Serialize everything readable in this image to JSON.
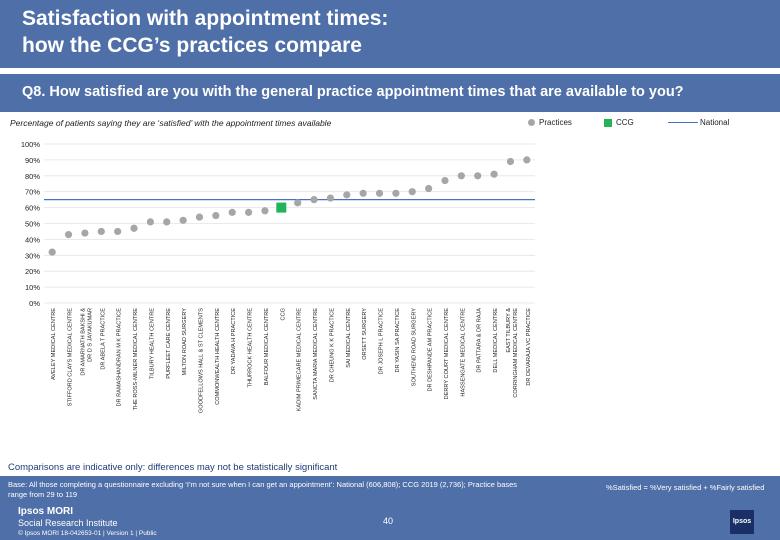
{
  "header": {
    "title_line1": "Satisfaction with appointment times:",
    "title_line2": "how the CCG’s practices compare"
  },
  "question": "Q8. How satisfied are you with the general practice appointment times that are available to you?",
  "subtitle": "Percentage of patients saying they are ‘satisfied’ with the appointment times available",
  "legend": {
    "practices": "Practices",
    "ccg": "CCG",
    "national": "National"
  },
  "colors": {
    "practice": "#a6a6a6",
    "ccg": "#22b45a",
    "national": "#4472c4",
    "brand": "#4f6fa8"
  },
  "chart_data": {
    "type": "scatter",
    "title": "Percentage of patients saying they are ‘satisfied’ with the appointment times available",
    "ylim": [
      0,
      100
    ],
    "yticks": [
      0,
      10,
      20,
      30,
      40,
      50,
      60,
      70,
      80,
      90,
      100
    ],
    "ytick_labels": [
      "0%",
      "10%",
      "20%",
      "30%",
      "40%",
      "50%",
      "60%",
      "70%",
      "80%",
      "90%",
      "100%"
    ],
    "national_value": 65,
    "categories": [
      "AVELEY MEDICAL CENTRE",
      "STIFFORD CLAYS MEDICAL CENTRE",
      "DR AMARNATH BAKSHI & DR D S JAYAKUMAR",
      "DR ABELA T PRACTICE",
      "DR RAMASHANDRAN M K PRACTICE",
      "THE ROSS-MILNER MEDICAL CENTRE",
      "TILBURY HEALTH CENTRE",
      "PURFLEET CARE CENTRE",
      "MILTON ROAD SURGERY",
      "GOODFELLOWS HALL & ST CLEMENTS",
      "COMMONWEALTH HEALTH CENTRE",
      "DR YADAVA H PRACTICE",
      "THURROCK HEALTH CENTRE",
      "BALFOUR MEDICAL CENTRE",
      "CCG",
      "KADIM PRIMECARE MEDICAL CENTRE",
      "SANCTA MARIA MEDICAL CENTRE",
      "DR CHEUNG K K PRACTICE",
      "SAI MEDICAL CENTRE",
      "ORSETT SURGERY",
      "DR JOSEPH L PRACTICE",
      "DR YASIN SA PRACTICE",
      "SOUTHEND ROAD SURGERY",
      "DR DESHPANDE AM PRACTICE",
      "DERRY COURT MEDICAL CENTRE",
      "HASSENGATE MEDICAL CENTRE",
      "DR PATTARA & DR RAJA",
      "DELL MEDICAL CENTRE",
      "EAST TILBURY & CORRINGHAM MEDICAL CENTRE",
      "DR DEVARAJA VC PRACTICE"
    ],
    "values": [
      32,
      43,
      44,
      45,
      45,
      47,
      51,
      51,
      52,
      54,
      55,
      57,
      57,
      58,
      60,
      63,
      65,
      66,
      68,
      69,
      69,
      69,
      70,
      72,
      77,
      80,
      80,
      81,
      89,
      90
    ],
    "ccg_index": 14,
    "series": [
      {
        "name": "Practices",
        "kind": "point"
      },
      {
        "name": "CCG",
        "kind": "square"
      },
      {
        "name": "National",
        "kind": "line"
      }
    ]
  },
  "caveat": "Comparisons are indicative only: differences may not be statistically significant",
  "footer": {
    "base": "Base: All those completing a questionnaire excluding ‘I’m not sure when I can get an appointment’: National (606,808); CCG 2019 (2,736); Practice bases range from 29 to 119",
    "formula": "%Satisfied = %Very satisfied + %Fairly satisfied",
    "page": "40",
    "brand_line1": "Ipsos MORI",
    "brand_line2": "Social Research Institute",
    "copyright": "© Ipsos MORI   18-042653-01 | Version 1 | Public",
    "logo": "Ipsos"
  }
}
